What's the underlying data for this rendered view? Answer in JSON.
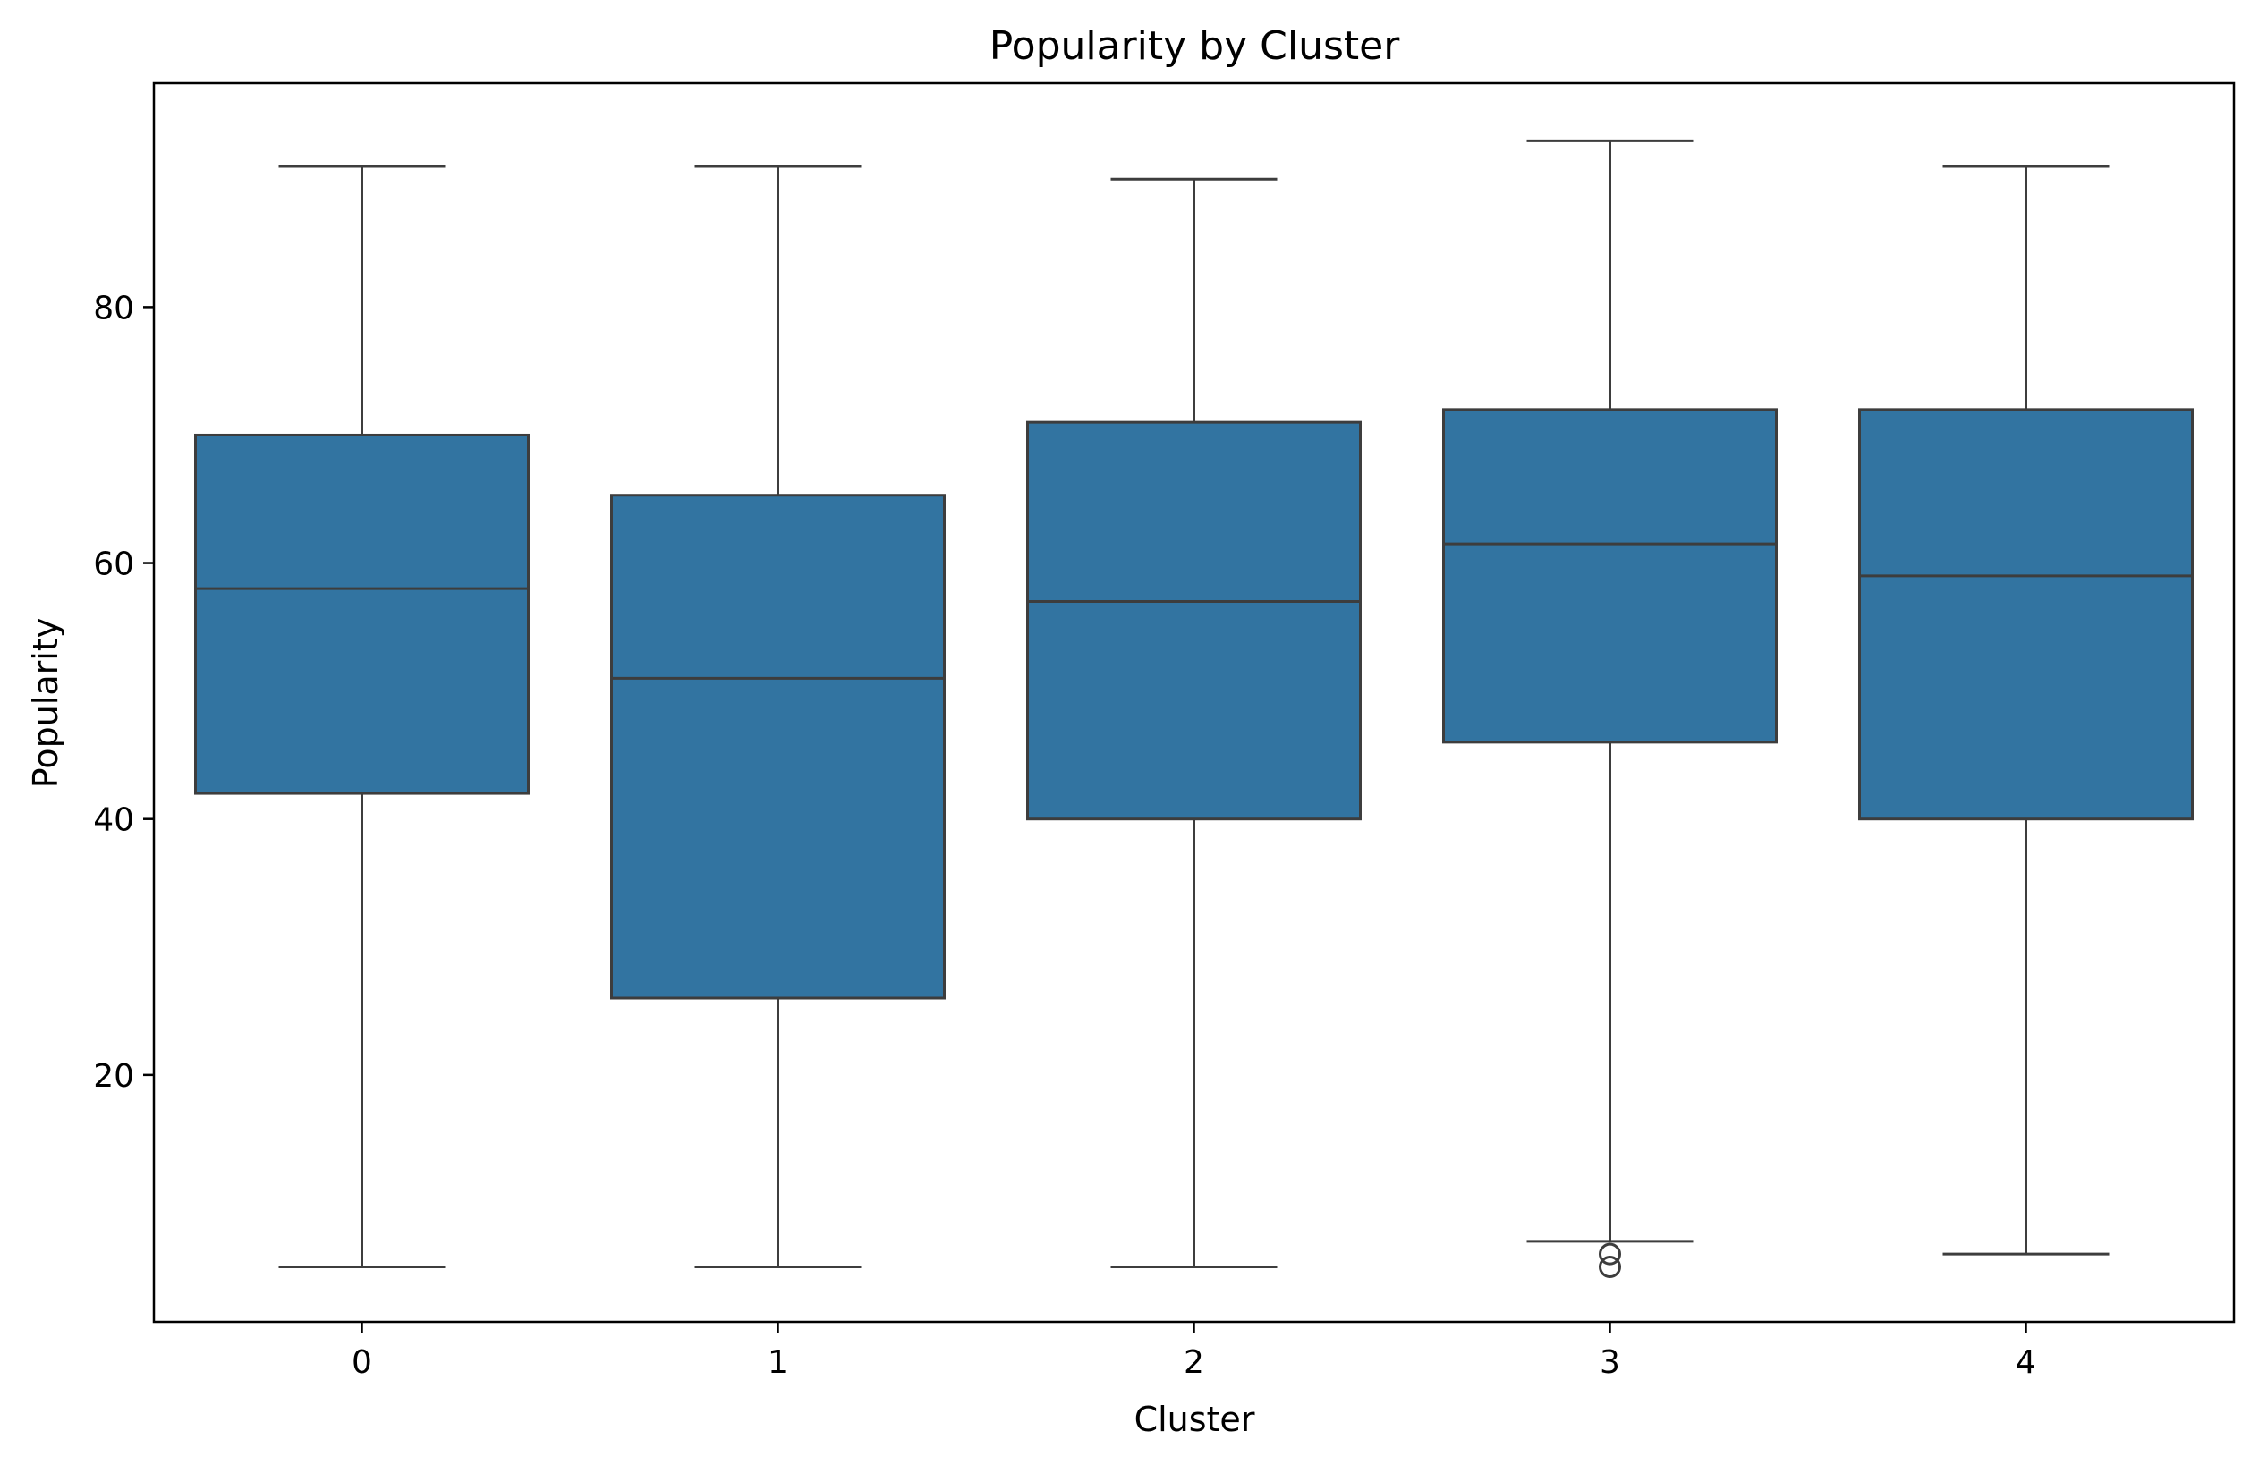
{
  "chart_data": {
    "type": "box",
    "title": "Popularity by Cluster",
    "xlabel": "Cluster",
    "ylabel": "Popularity",
    "categories": [
      "0",
      "1",
      "2",
      "3",
      "4"
    ],
    "ylim": [
      0.7,
      97.5
    ],
    "yticks": [
      20,
      40,
      60,
      80
    ],
    "grid": false,
    "legend": "none",
    "box_color": "#3274a1",
    "line_color": "#3d3d3d",
    "boxes": [
      {
        "category": "0",
        "whisker_low": 5,
        "q1": 42,
        "median": 58,
        "q3": 70,
        "whisker_high": 91,
        "outliers": []
      },
      {
        "category": "1",
        "whisker_low": 5,
        "q1": 26,
        "median": 51,
        "q3": 65.3,
        "whisker_high": 91,
        "outliers": []
      },
      {
        "category": "2",
        "whisker_low": 5,
        "q1": 40,
        "median": 57,
        "q3": 71,
        "whisker_high": 90,
        "outliers": []
      },
      {
        "category": "3",
        "whisker_low": 7,
        "q1": 46,
        "median": 61.5,
        "q3": 72,
        "whisker_high": 93,
        "outliers": [
          6,
          5
        ]
      },
      {
        "category": "4",
        "whisker_low": 6,
        "q1": 40,
        "median": 59,
        "q3": 72,
        "whisker_high": 91,
        "outliers": []
      }
    ]
  }
}
